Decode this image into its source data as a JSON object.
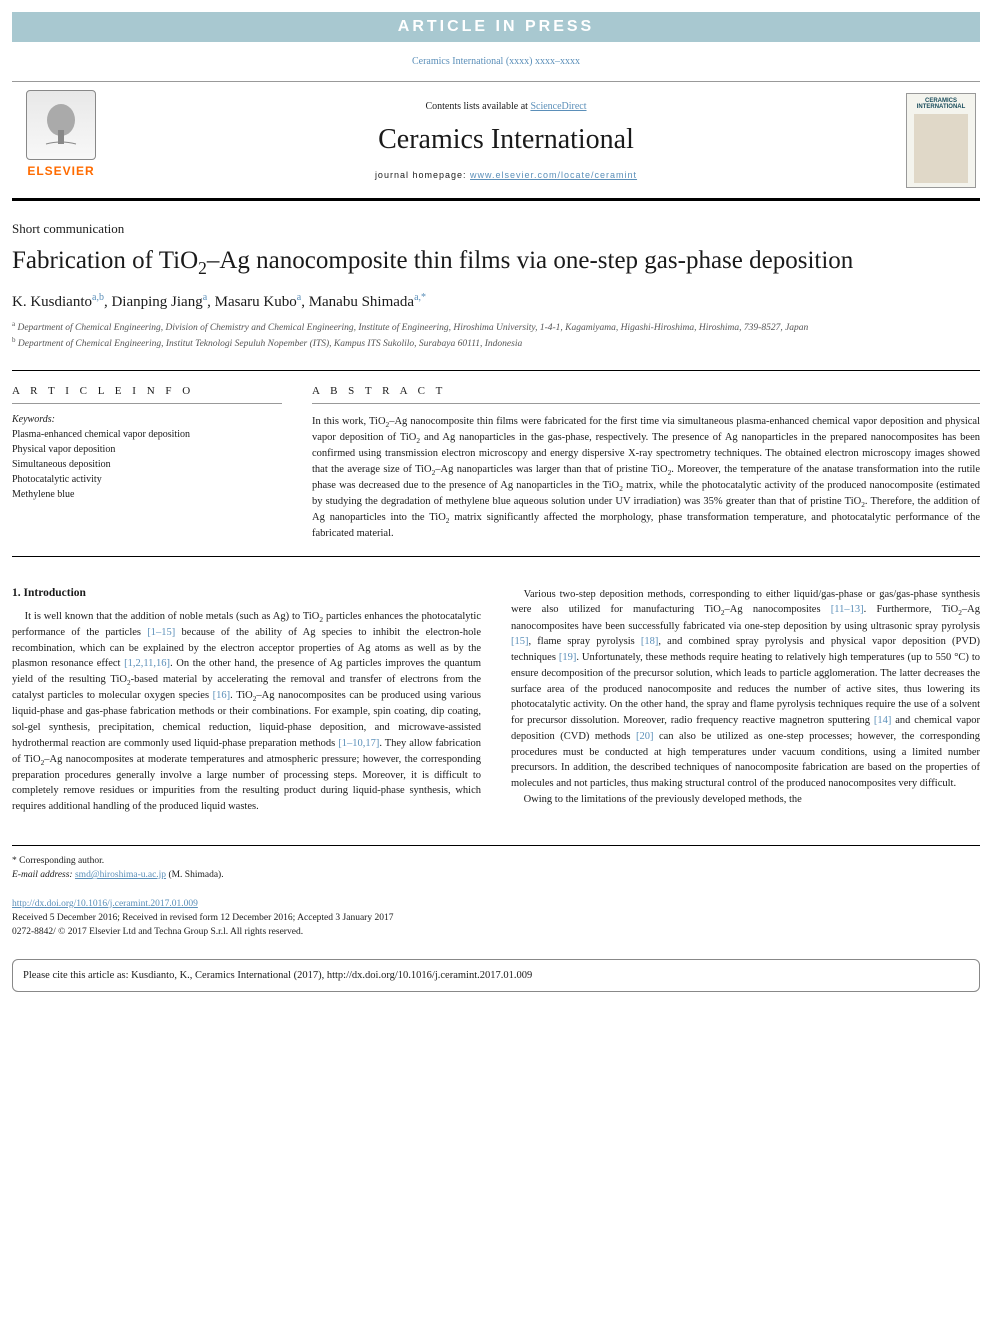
{
  "banner": "ARTICLE IN PRESS",
  "journal_ref": "Ceramics International (xxxx) xxxx–xxxx",
  "contents_line": {
    "prefix": "Contents lists available at ",
    "link": "ScienceDirect"
  },
  "journal_title": "Ceramics International",
  "homepage": {
    "label": "journal homepage: ",
    "url": "www.elsevier.com/locate/ceramint"
  },
  "elsevier_brand": "ELSEVIER",
  "cover_label": "CERAMICS INTERNATIONAL",
  "article_type": "Short communication",
  "title_html": "Fabrication of TiO<sub>2</sub>–Ag nanocomposite thin films via one-step gas-phase deposition",
  "authors": [
    {
      "name": "K. Kusdianto",
      "sup": "a,b"
    },
    {
      "name": "Dianping Jiang",
      "sup": "a"
    },
    {
      "name": "Masaru Kubo",
      "sup": "a"
    },
    {
      "name": "Manabu Shimada",
      "sup": "a,*"
    }
  ],
  "affiliations": [
    {
      "tag": "a",
      "text": "Department of Chemical Engineering, Division of Chemistry and Chemical Engineering, Institute of Engineering, Hiroshima University, 1-4-1, Kagamiyama, Higashi-Hiroshima, Hiroshima, 739-8527, Japan"
    },
    {
      "tag": "b",
      "text": "Department of Chemical Engineering, Institut Teknologi Sepuluh Nopember (ITS), Kampus ITS Sukolilo, Surabaya 60111, Indonesia"
    }
  ],
  "article_info_header": "A R T I C L E  I N F O",
  "abstract_header": "A B S T R A C T",
  "keywords_label": "Keywords:",
  "keywords": [
    "Plasma-enhanced chemical vapor deposition",
    "Physical vapor deposition",
    "Simultaneous deposition",
    "Photocatalytic activity",
    "Methylene blue"
  ],
  "abstract_html": "In this work, TiO<sub>2</sub>–Ag nanocomposite thin films were fabricated for the first time via simultaneous plasma-enhanced chemical vapor deposition and physical vapor deposition of TiO<sub>2</sub> and Ag nanoparticles in the gas-phase, respectively. The presence of Ag nanoparticles in the prepared nanocomposites has been confirmed using transmission electron microscopy and energy dispersive X-ray spectrometry techniques. The obtained electron microscopy images showed that the average size of TiO<sub>2</sub>–Ag nanoparticles was larger than that of pristine TiO<sub>2</sub>. Moreover, the temperature of the anatase transformation into the rutile phase was decreased due to the presence of Ag nanoparticles in the TiO<sub>2</sub> matrix, while the photocatalytic activity of the produced nanocomposite (estimated by studying the degradation of methylene blue aqueous solution under UV irradiation) was 35% greater than that of pristine TiO<sub>2</sub>. Therefore, the addition of Ag nanoparticles into the TiO<sub>2</sub> matrix significantly affected the morphology, phase transformation temperature, and photocatalytic performance of the fabricated material.",
  "section1_title": "1. Introduction",
  "col1_html": "It is well known that the addition of noble metals (such as Ag) to TiO<sub>2</sub> particles enhances the photocatalytic performance of the particles <span class='cite-link'>[1–15]</span> because of the ability of Ag species to inhibit the electron-hole recombination, which can be explained by the electron acceptor properties of Ag atoms as well as by the plasmon resonance effect <span class='cite-link'>[1,2,11,16]</span>. On the other hand, the presence of Ag particles improves the quantum yield of the resulting TiO<sub>2</sub>-based material by accelerating the removal and transfer of electrons from the catalyst particles to molecular oxygen species <span class='cite-link'>[16]</span>. TiO<sub>2</sub>–Ag nanocomposites can be produced using various liquid-phase and gas-phase fabrication methods or their combinations. For example, spin coating, dip coating, sol-gel synthesis, precipitation, chemical reduction, liquid-phase deposition, and microwave-assisted hydrothermal reaction are commonly used liquid-phase preparation methods <span class='cite-link'>[1–10,17]</span>. They allow fabrication of TiO<sub>2</sub>–Ag nanocomposites at moderate temperatures and atmospheric pressure; however, the corresponding preparation procedures generally involve a large number of processing steps. Moreover, it is difficult to completely remove residues or impurities from the resulting product during liquid-phase synthesis, which requires additional handling of the produced liquid wastes.",
  "col2_p1_html": "Various two-step deposition methods, corresponding to either liquid/gas-phase or gas/gas-phase synthesis were also utilized for manufacturing TiO<sub>2</sub>–Ag nanocomposites <span class='cite-link'>[11–13]</span>. Furthermore, TiO<sub>2</sub>–Ag nanocomposites have been successfully fabricated via one-step deposition by using ultrasonic spray pyrolysis <span class='cite-link'>[15]</span>, flame spray pyrolysis <span class='cite-link'>[18]</span>, and combined spray pyrolysis and physical vapor deposition (PVD) techniques <span class='cite-link'>[19]</span>. Unfortunately, these methods require heating to relatively high temperatures (up to 550 °C) to ensure decomposition of the precursor solution, which leads to particle agglomeration. The latter decreases the surface area of the produced nanocomposite and reduces the number of active sites, thus lowering its photocatalytic activity. On the other hand, the spray and flame pyrolysis techniques require the use of a solvent for precursor dissolution. Moreover, radio frequency reactive magnetron sputtering <span class='cite-link'>[14]</span> and chemical vapor deposition (CVD) methods <span class='cite-link'>[20]</span> can also be utilized as one-step processes; however, the corresponding procedures must be conducted at high temperatures under vacuum conditions, using a limited number precursors. In addition, the described techniques of nanocomposite fabrication are based on the properties of molecules and not particles, thus making structural control of the produced nanocomposites very difficult.",
  "col2_p2_html": "Owing to the limitations of the previously developed methods, the",
  "corresponding": "* Corresponding author.",
  "email_label": "E-mail address: ",
  "email": "smd@hiroshima-u.ac.jp",
  "email_author": " (M. Shimada).",
  "doi": "http://dx.doi.org/10.1016/j.ceramint.2017.01.009",
  "received": "Received 5 December 2016; Received in revised form 12 December 2016; Accepted 3 January 2017",
  "copyright": "0272-8842/ © 2017 Elsevier Ltd and Techna Group S.r.l. All rights reserved.",
  "cite_as": "Please cite this article as: Kusdianto, K., Ceramics International (2017), http://dx.doi.org/10.1016/j.ceramint.2017.01.009",
  "colors": {
    "banner_bg": "#a8c8d0",
    "link": "#5b8fb9",
    "elsevier_orange": "#ff6b00"
  }
}
